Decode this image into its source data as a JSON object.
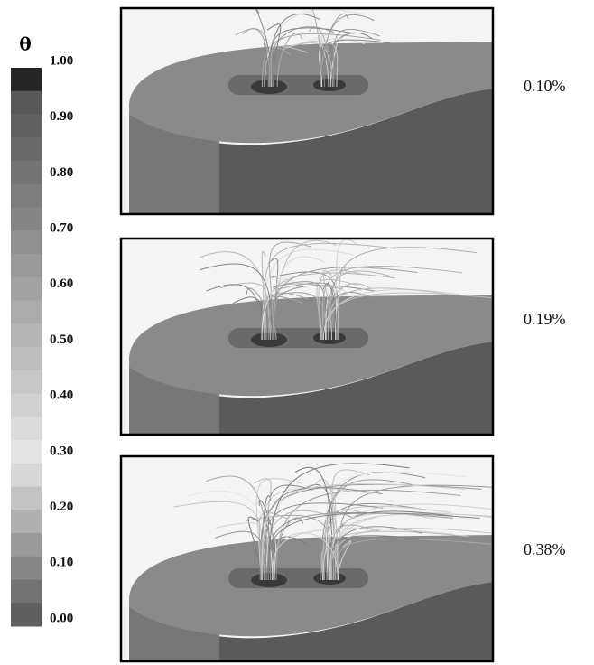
{
  "colorbar": {
    "title": "θ",
    "tick_labels": [
      "1.00",
      "0.90",
      "0.80",
      "0.70",
      "0.60",
      "0.50",
      "0.40",
      "0.30",
      "0.20",
      "0.10",
      "0.00"
    ]
  },
  "panels": [
    {
      "label": "0.10%"
    },
    {
      "label": "0.19%"
    },
    {
      "label": "0.38%"
    }
  ]
}
